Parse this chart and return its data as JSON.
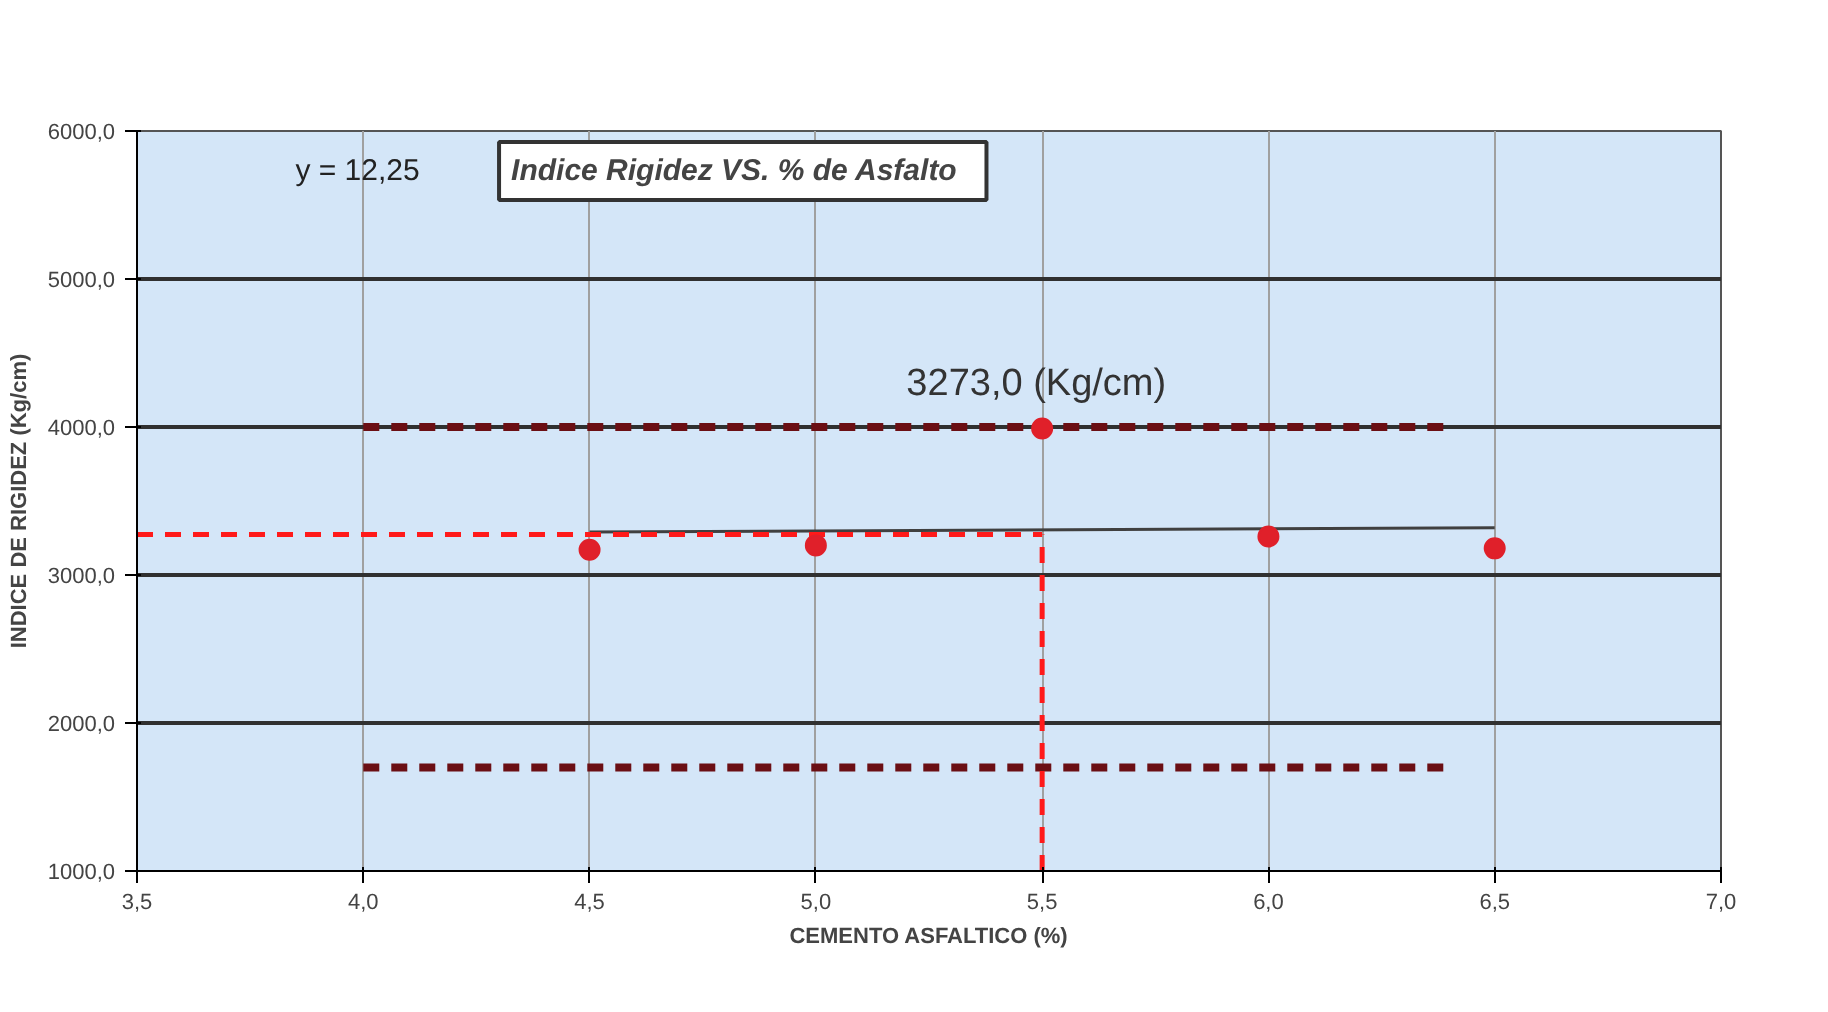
{
  "chart_data": {
    "type": "scatter",
    "title": "Indice Rigidez  VS.  % de Asfalto",
    "xlabel": "CEMENTO ASFALTICO (%)",
    "ylabel": "INDICE DE RIGIDEZ (Kg/cm)",
    "x": [
      4.5,
      5.0,
      5.5,
      6.0,
      6.5
    ],
    "xlim": [
      3.5,
      7.0
    ],
    "xticks": [
      {
        "value": 3.5,
        "label": "3,5"
      },
      {
        "value": 4.0,
        "label": "4,0"
      },
      {
        "value": 4.5,
        "label": "4,5"
      },
      {
        "value": 5.0,
        "label": "5,0"
      },
      {
        "value": 5.5,
        "label": "5,5"
      },
      {
        "value": 6.0,
        "label": "6,0"
      },
      {
        "value": 6.5,
        "label": "6,5"
      },
      {
        "value": 7.0,
        "label": "7,0"
      }
    ],
    "ylim": [
      1000,
      6000
    ],
    "yticks": [
      {
        "value": 1000,
        "label": "1000,0"
      },
      {
        "value": 2000,
        "label": "2000,0"
      },
      {
        "value": 3000,
        "label": "3000,0"
      },
      {
        "value": 4000,
        "label": "4000,0"
      },
      {
        "value": 5000,
        "label": "5000,0"
      },
      {
        "value": 6000,
        "label": "6000,0"
      }
    ],
    "grid": true,
    "marker": "circle",
    "series": [
      {
        "color": "#e0202a",
        "values": [
          3170,
          3200,
          3990,
          3260,
          3180
        ]
      },
      {
        "type": "line",
        "color": "#404040",
        "line_style": "solid",
        "marker": "none",
        "x": [
          4.5,
          6.5
        ],
        "values": [
          3290,
          3320
        ]
      },
      {
        "type": "line",
        "color": "#6b0f14",
        "line_style": "dashed",
        "marker": "none",
        "x": [
          4.0,
          6.4
        ],
        "values": [
          4000,
          4000
        ]
      },
      {
        "type": "line",
        "color": "#6b0f14",
        "line_style": "dashed",
        "marker": "none",
        "x": [
          4.0,
          6.4
        ],
        "values": [
          1700,
          1700
        ]
      },
      {
        "type": "line",
        "color": "#ff1a1a",
        "line_style": "dashed",
        "marker": "none",
        "x": [
          3.5,
          5.5
        ],
        "values": [
          3273,
          3273
        ]
      },
      {
        "type": "line",
        "color": "#ff1a1a",
        "line_style": "dashed",
        "marker": "none",
        "x": [
          5.5,
          5.5
        ],
        "values": [
          1000,
          3273
        ]
      }
    ],
    "annotations": [
      "y = 12,25",
      "3273,0 (Kg/cm)"
    ]
  }
}
